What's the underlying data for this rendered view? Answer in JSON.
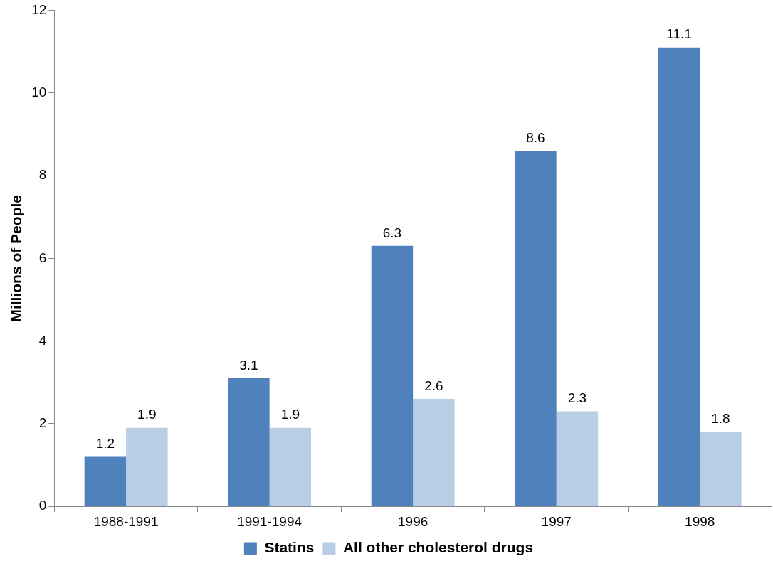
{
  "chart_data": {
    "type": "bar",
    "ylabel": "Millions of People",
    "categories": [
      "1988-1991",
      "1991-1994",
      "1996",
      "1997",
      "1998"
    ],
    "series": [
      {
        "name": "Statins",
        "color": "#4f81bd",
        "values": [
          1.2,
          3.1,
          6.3,
          8.6,
          11.1
        ]
      },
      {
        "name": "All other cholesterol drugs",
        "color": "#b9cde5",
        "values": [
          1.9,
          1.9,
          2.6,
          2.3,
          1.8
        ]
      }
    ],
    "ylim": [
      0,
      12
    ],
    "yticks": [
      0,
      2,
      4,
      6,
      8,
      10,
      12
    ],
    "grid": false,
    "legend": "bottom",
    "data_labels": true
  }
}
